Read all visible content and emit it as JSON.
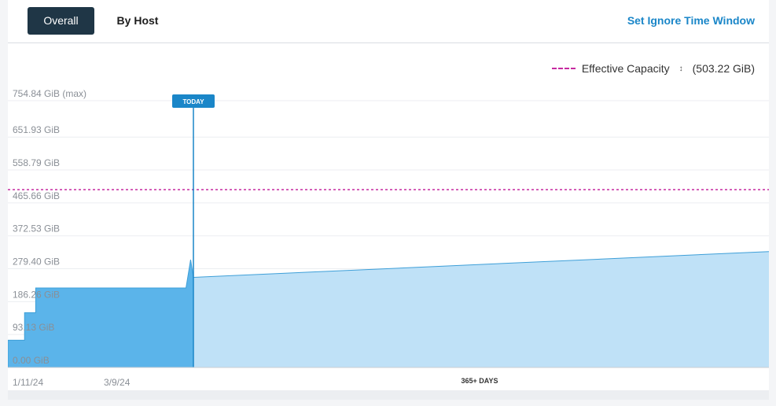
{
  "tabs": {
    "overall": "Overall",
    "by_host": "By Host"
  },
  "actions": {
    "ignore_window": "Set Ignore Time Window"
  },
  "legend": {
    "label": "Effective Capacity",
    "sort_glyph": "↕",
    "value": "(503.22 GiB)"
  },
  "chart_data": {
    "type": "area",
    "y_unit": "GiB",
    "ylim": [
      0,
      754.84
    ],
    "y_ticks": [
      "754.84 GiB (max)",
      "651.93 GiB",
      "558.79 GiB",
      "465.66 GiB",
      "372.53 GiB",
      "279.40 GiB",
      "186.26 GiB",
      "93.13 GiB",
      "0.00 GiB"
    ],
    "y_tick_values": [
      754.84,
      651.93,
      558.79,
      465.66,
      372.53,
      279.4,
      186.26,
      93.13,
      0.0
    ],
    "x_ticks": [
      "1/11/24",
      "3/9/24"
    ],
    "future_label": "365+ DAYS",
    "today_label": "TODAY",
    "capacity_line": {
      "name": "Effective Capacity",
      "value": 503.22,
      "style": "dashed",
      "color": "#c62aa0"
    },
    "series": [
      {
        "name": "historical",
        "color": "#5bb4ea",
        "points": [
          {
            "t": 0.0,
            "y": 77
          },
          {
            "t": 0.09,
            "y": 77
          },
          {
            "t": 0.09,
            "y": 155
          },
          {
            "t": 0.15,
            "y": 155
          },
          {
            "t": 0.15,
            "y": 225
          },
          {
            "t": 0.96,
            "y": 225
          },
          {
            "t": 0.985,
            "y": 305
          },
          {
            "t": 1.0,
            "y": 255
          }
        ]
      },
      {
        "name": "forecast",
        "color": "#bfe1f7",
        "points": [
          {
            "t": 0.0,
            "y": 255
          },
          {
            "t": 1.0,
            "y": 328
          }
        ]
      }
    ],
    "grid": true
  },
  "colors": {
    "accent": "#1a86c8",
    "tab_active": "#1f3646",
    "today": "#1a86c8"
  }
}
